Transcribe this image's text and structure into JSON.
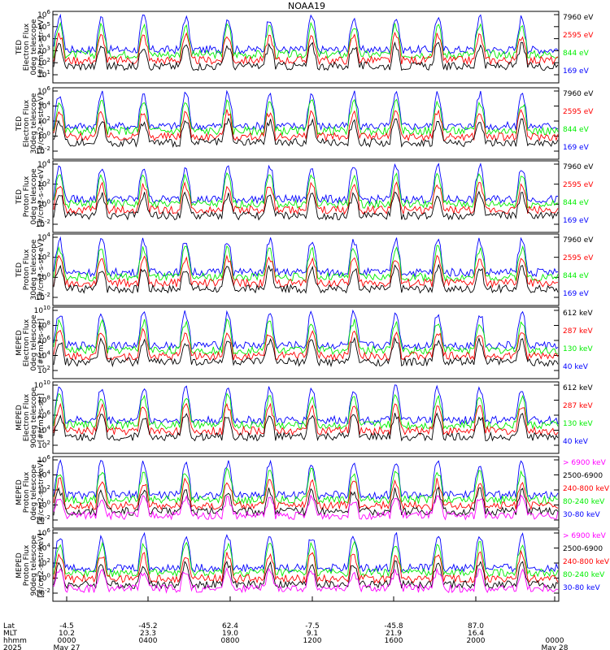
{
  "title": "NOAA19",
  "chart_data": [
    {
      "type": "line",
      "ylabel_lines": [
        "TED",
        "Electron Flux",
        "0deg telescope",
        "[#/cm2-s-str-eV]"
      ],
      "yticks": [
        "10^1",
        "10^2",
        "10^3",
        "10^4",
        "10^5",
        "10^6"
      ],
      "legend": [
        {
          "name": "7960 eV",
          "color": "#000000"
        },
        {
          "name": "2595 eV",
          "color": "#ff0000"
        },
        {
          "name": "844 eV",
          "color": "#00ee00"
        },
        {
          "name": "169 eV",
          "color": "#0000ff"
        }
      ]
    },
    {
      "type": "line",
      "ylabel_lines": [
        "TED",
        "Electron Flux",
        "30deg telescope",
        "[#/cm2-s-str-eV]"
      ],
      "yticks": [
        "10^-2",
        "10^0",
        "10^2",
        "10^4",
        "10^6"
      ],
      "legend": [
        {
          "name": "7960 eV",
          "color": "#000000"
        },
        {
          "name": "2595 eV",
          "color": "#ff0000"
        },
        {
          "name": "844 eV",
          "color": "#00ee00"
        },
        {
          "name": "169 eV",
          "color": "#0000ff"
        }
      ]
    },
    {
      "type": "line",
      "ylabel_lines": [
        "TED",
        "Proton Flux",
        "0deg telescope",
        "[#/cm2-s-str-eV]"
      ],
      "yticks": [
        "10^-2",
        "10^0",
        "10^2",
        "10^4"
      ],
      "legend": [
        {
          "name": "7960 eV",
          "color": "#000000"
        },
        {
          "name": "2595 eV",
          "color": "#ff0000"
        },
        {
          "name": "844 eV",
          "color": "#00ee00"
        },
        {
          "name": "169 eV",
          "color": "#0000ff"
        }
      ]
    },
    {
      "type": "line",
      "ylabel_lines": [
        "TED",
        "Proton Flux",
        "30deg telescope",
        "[#/cm2-s-str-eV]"
      ],
      "yticks": [
        "10^-2",
        "10^0",
        "10^2",
        "10^4"
      ],
      "legend": [
        {
          "name": "7960 eV",
          "color": "#000000"
        },
        {
          "name": "2595 eV",
          "color": "#ff0000"
        },
        {
          "name": "844 eV",
          "color": "#00ee00"
        },
        {
          "name": "169 eV",
          "color": "#0000ff"
        }
      ]
    },
    {
      "type": "line",
      "ylabel_lines": [
        "MEPED",
        "Electron Flux",
        "0deg telescope",
        "[#/cm2-s-str]"
      ],
      "yticks": [
        "10^2",
        "10^4",
        "10^6",
        "10^8",
        "10^10"
      ],
      "legend": [
        {
          "name": "612 keV",
          "color": "#000000"
        },
        {
          "name": "287 keV",
          "color": "#ff0000"
        },
        {
          "name": "130 keV",
          "color": "#00ee00"
        },
        {
          "name": "40 keV",
          "color": "#0000ff"
        }
      ]
    },
    {
      "type": "line",
      "ylabel_lines": [
        "MEPED",
        "Electron Flux",
        "90deg telescope",
        "[#/cm2-s-str]"
      ],
      "yticks": [
        "10^2",
        "10^4",
        "10^6",
        "10^8",
        "10^10"
      ],
      "legend": [
        {
          "name": "612 keV",
          "color": "#000000"
        },
        {
          "name": "287 keV",
          "color": "#ff0000"
        },
        {
          "name": "130 keV",
          "color": "#00ee00"
        },
        {
          "name": "40 keV",
          "color": "#0000ff"
        }
      ]
    },
    {
      "type": "line",
      "ylabel_lines": [
        "MEPED",
        "Proton Flux",
        "0deg telescope",
        "[#/cm2-s-str-keV]"
      ],
      "yticks": [
        "10^-2",
        "10^0",
        "10^2",
        "10^4",
        "10^6"
      ],
      "legend": [
        {
          "name": "> 6900 keV",
          "color": "#ff00ff"
        },
        {
          "name": "2500-6900",
          "color": "#000000"
        },
        {
          "name": "240-800 keV",
          "color": "#ff0000"
        },
        {
          "name": "80-240 keV",
          "color": "#00ee00"
        },
        {
          "name": "30-80 keV",
          "color": "#0000ff"
        }
      ]
    },
    {
      "type": "line",
      "ylabel_lines": [
        "MEPED",
        "Proton Flux",
        "90deg telescope",
        "[#/cm2-s-str-keV]"
      ],
      "yticks": [
        "10^-2",
        "10^0",
        "10^2",
        "10^4",
        "10^6"
      ],
      "legend": [
        {
          "name": "> 6900 keV",
          "color": "#ff00ff"
        },
        {
          "name": "2500-6900",
          "color": "#000000"
        },
        {
          "name": "240-800 keV",
          "color": "#ff0000"
        },
        {
          "name": "80-240 keV",
          "color": "#00ee00"
        },
        {
          "name": "30-80 keV",
          "color": "#0000ff"
        }
      ]
    }
  ],
  "x_axis": {
    "row_labels": [
      "Lat",
      "MLT",
      "hhmm",
      "2025"
    ],
    "ticks": [
      {
        "lat": "-4.5",
        "mlt": "10.2",
        "hhmm": "0000",
        "date": "May 27"
      },
      {
        "lat": "-45.2",
        "mlt": "23.3",
        "hhmm": "0400",
        "date": ""
      },
      {
        "lat": "62.4",
        "mlt": "19.0",
        "hhmm": "0800",
        "date": ""
      },
      {
        "lat": "-7.5",
        "mlt": "9.1",
        "hhmm": "1200",
        "date": ""
      },
      {
        "lat": "-45.8",
        "mlt": "21.9",
        "hhmm": "1600",
        "date": ""
      },
      {
        "lat": "87.0",
        "mlt": "16.4",
        "hhmm": "2000",
        "date": ""
      },
      {
        "lat": "",
        "mlt": "",
        "hhmm": "0000",
        "date": "May 28"
      }
    ]
  }
}
